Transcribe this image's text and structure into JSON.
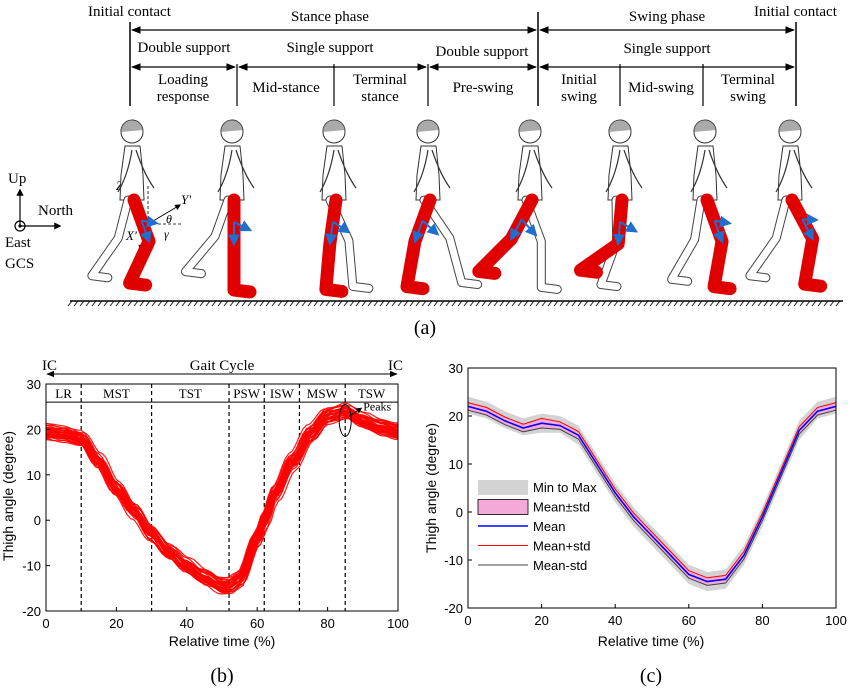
{
  "diagram": {
    "initial_contact_left": "Initial contact",
    "stance_phase": "Stance phase",
    "swing_phase": "Swing phase",
    "initial_contact_right": "Initial contact",
    "double_support_1": "Double support",
    "single_support_1": "Single support",
    "double_support_2": "Double support",
    "single_support_2": "Single support",
    "sub_phases": [
      [
        "Loading",
        "response"
      ],
      [
        "Mid-stance"
      ],
      [
        "Terminal",
        "stance"
      ],
      [
        "Pre-swing"
      ],
      [
        "Initial",
        "swing"
      ],
      [
        "Mid-swing"
      ],
      [
        "Terminal",
        "swing"
      ]
    ],
    "gcs": {
      "up": "Up",
      "north": "North",
      "east": "East",
      "frame": "GCS"
    },
    "sensor_axes": {
      "x": "X'",
      "y": "Y'",
      "z": "Z'",
      "theta": "θ",
      "gamma": "γ"
    },
    "panel_label": "(a)",
    "figure_count": 8
  },
  "panel_labels": {
    "b": "(b)",
    "c": "(c)"
  },
  "chart_data": [
    {
      "type": "line",
      "panel": "b",
      "xlabel": "Relative time (%)",
      "ylabel": "Thigh angle (degree)",
      "xlim": [
        0,
        100
      ],
      "ylim": [
        -20,
        30
      ],
      "xticks": [
        0,
        20,
        40,
        60,
        80,
        100
      ],
      "yticks": [
        -20,
        -10,
        0,
        10,
        20,
        30
      ],
      "color": "#ff0000",
      "gait_cycle": {
        "label": "Gait Cycle",
        "start": "IC",
        "end": "IC"
      },
      "phases": [
        {
          "label": "LR",
          "start": 0,
          "end": 10
        },
        {
          "label": "MST",
          "start": 10,
          "end": 30
        },
        {
          "label": "TST",
          "start": 30,
          "end": 52
        },
        {
          "label": "PSW",
          "start": 52,
          "end": 62
        },
        {
          "label": "ISW",
          "start": 62,
          "end": 72
        },
        {
          "label": "MSW",
          "start": 72,
          "end": 85
        },
        {
          "label": "TSW",
          "start": 85,
          "end": 100
        }
      ],
      "annotation": {
        "text": "Peaks",
        "x": 85,
        "y": 22
      },
      "curves": 30,
      "x": [
        0,
        5,
        10,
        15,
        20,
        25,
        30,
        35,
        40,
        45,
        50,
        52,
        55,
        60,
        62,
        65,
        70,
        75,
        80,
        85,
        90,
        95,
        100
      ],
      "y": [
        19.5,
        19,
        18,
        13,
        7,
        2,
        -3,
        -7,
        -10,
        -12.5,
        -14.5,
        -14.5,
        -13,
        -4,
        0,
        6,
        13,
        19,
        23,
        24,
        22,
        20.5,
        19.5
      ]
    },
    {
      "type": "line",
      "panel": "c",
      "xlabel": "Relative time (%)",
      "ylabel": "Thigh angle (degree)",
      "xlim": [
        0,
        100
      ],
      "ylim": [
        -20,
        30
      ],
      "xticks": [
        0,
        20,
        40,
        60,
        80,
        100
      ],
      "yticks": [
        -20,
        -10,
        0,
        10,
        20,
        30
      ],
      "legend": {
        "position": "center-left",
        "entries": [
          "Min to Max",
          "Mean±std",
          "Mean",
          "Mean+std",
          "Mean-std"
        ]
      },
      "colors": {
        "min_max": "#d3d3d3",
        "std_fill": "#f5a9d8",
        "mean": "#0000ff",
        "mean_plus_std": "#ff0000",
        "mean_minus_std": "#444444"
      },
      "x": [
        0,
        5,
        10,
        15,
        20,
        25,
        30,
        35,
        40,
        45,
        50,
        55,
        60,
        65,
        70,
        75,
        80,
        85,
        90,
        95,
        100
      ],
      "mean": [
        22,
        21,
        19,
        17.5,
        18.5,
        18,
        16,
        10,
        4,
        -1,
        -5,
        -9,
        -13,
        -14.5,
        -14,
        -9,
        -1,
        8,
        17,
        21,
        22
      ],
      "std": [
        0.8,
        0.8,
        0.8,
        0.8,
        1,
        0.8,
        0.8,
        0.8,
        0.8,
        0.8,
        0.8,
        0.8,
        0.8,
        0.8,
        0.8,
        0.8,
        0.8,
        0.8,
        0.8,
        0.8,
        0.8
      ],
      "min": [
        20.5,
        19.5,
        17.5,
        16,
        16.5,
        16.5,
        14,
        8,
        2,
        -3,
        -7,
        -11,
        -15,
        -16.5,
        -16,
        -11,
        -3,
        6,
        15,
        19.5,
        20.5
      ],
      "max": [
        24,
        23,
        21,
        19.5,
        20.5,
        20,
        18,
        12,
        6,
        1,
        -3,
        -7,
        -11,
        -12.5,
        -12,
        -7,
        1,
        10,
        19,
        23,
        24
      ]
    }
  ]
}
